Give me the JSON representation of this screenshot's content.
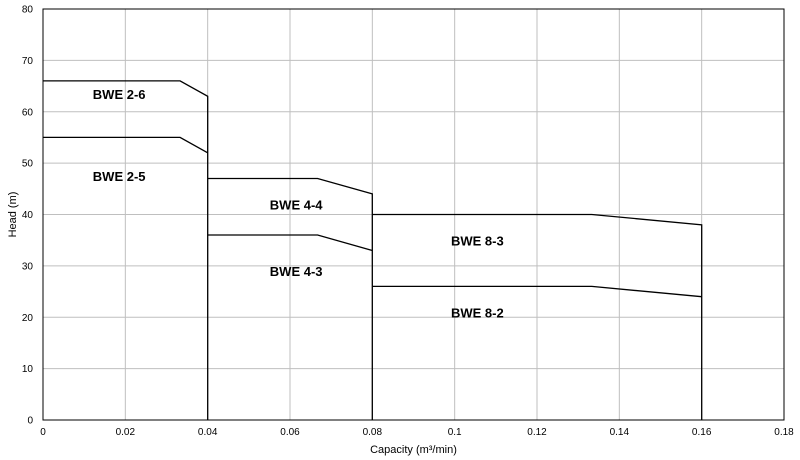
{
  "chart_data": {
    "type": "line",
    "xlabel": "Capacity (m³/min)",
    "ylabel": "Head (m)",
    "xlim": [
      0,
      0.18
    ],
    "ylim": [
      0,
      80
    ],
    "x_ticks": [
      0,
      0.02,
      0.04,
      0.06,
      0.08,
      0.1,
      0.12,
      0.14,
      0.16,
      0.18
    ],
    "x_tick_labels": [
      "0",
      "0.02",
      "0.04",
      "0.06",
      "0.08",
      "0.1",
      "0.12",
      "0.14",
      "0.16",
      "0.18"
    ],
    "y_ticks": [
      0,
      10,
      20,
      30,
      40,
      50,
      60,
      70,
      80
    ],
    "y_tick_labels": [
      "0",
      "10",
      "20",
      "30",
      "40",
      "50",
      "60",
      "70",
      "80"
    ],
    "grid": true,
    "series": [
      {
        "name": "BWE 2-6",
        "points": [
          [
            0,
            66
          ],
          [
            0.0333,
            66
          ],
          [
            0.04,
            63
          ],
          [
            0.04,
            0
          ]
        ],
        "label_at": [
          0.0185,
          62.5
        ]
      },
      {
        "name": "BWE 2-5",
        "points": [
          [
            0,
            55
          ],
          [
            0.0333,
            55
          ],
          [
            0.04,
            52
          ]
        ],
        "label_at": [
          0.0185,
          46.5
        ]
      },
      {
        "name": "BWE 4-4",
        "points": [
          [
            0.04,
            47
          ],
          [
            0.0667,
            47
          ],
          [
            0.08,
            44
          ],
          [
            0.08,
            0
          ]
        ],
        "label_at": [
          0.0615,
          41
        ]
      },
      {
        "name": "BWE 4-3",
        "points": [
          [
            0.04,
            36
          ],
          [
            0.0667,
            36
          ],
          [
            0.08,
            33
          ]
        ],
        "label_at": [
          0.0615,
          28
        ]
      },
      {
        "name": "BWE 8-3",
        "points": [
          [
            0.08,
            40
          ],
          [
            0.1333,
            40
          ],
          [
            0.16,
            38
          ],
          [
            0.16,
            0
          ]
        ],
        "label_at": [
          0.1055,
          34
        ]
      },
      {
        "name": "BWE 8-2",
        "points": [
          [
            0.08,
            26
          ],
          [
            0.1333,
            26
          ],
          [
            0.16,
            24
          ]
        ],
        "label_at": [
          0.1055,
          20
        ]
      }
    ]
  }
}
